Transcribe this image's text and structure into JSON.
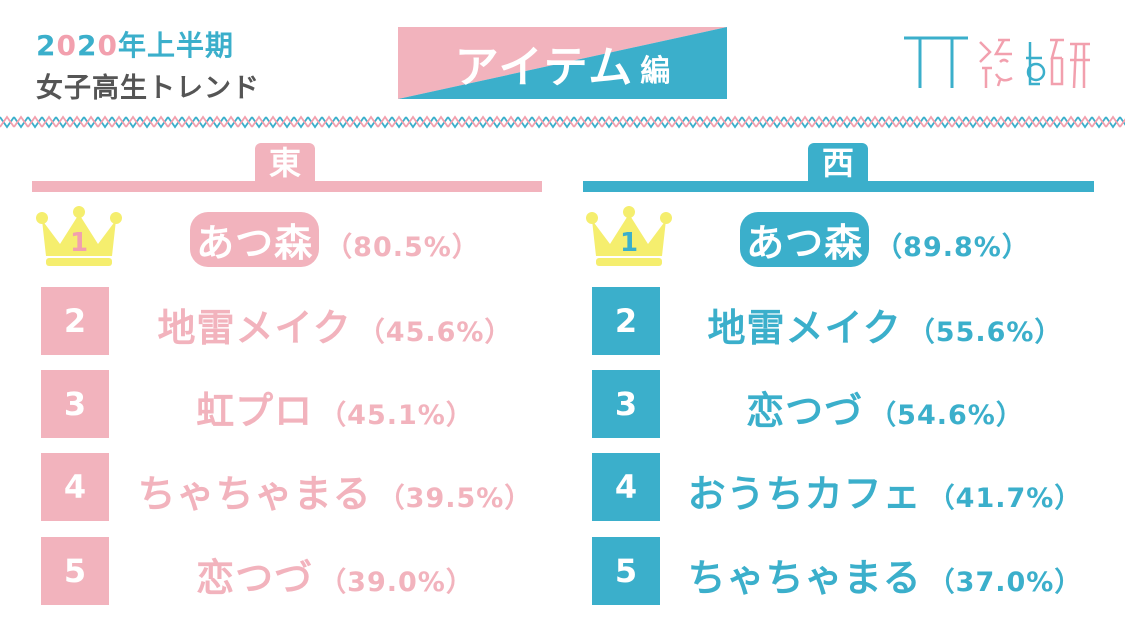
{
  "header": {
    "year_digits": [
      "2",
      "0",
      "2",
      "0"
    ],
    "year_suffix": "年上半期",
    "subtitle": "女子高生トレンド"
  },
  "banner": {
    "main": "アイテム",
    "suffix": "編"
  },
  "logo": {
    "text": "TT総研"
  },
  "colors": {
    "pink": "#F2B3BD",
    "blue": "#3BAFCB",
    "gold": "#F5EE6E",
    "gray": "#555555"
  },
  "east": {
    "heading": "東",
    "ranks": [
      {
        "rank": "1",
        "name": "あつ森",
        "pct": "（80.5%）"
      },
      {
        "rank": "2",
        "name": "地雷メイク",
        "pct": "（45.6%）"
      },
      {
        "rank": "3",
        "name": "虹プロ",
        "pct": "（45.1%）"
      },
      {
        "rank": "4",
        "name": "ちゃちゃまる",
        "pct": "（39.5%）"
      },
      {
        "rank": "5",
        "name": "恋つづ",
        "pct": "（39.0%）"
      }
    ]
  },
  "west": {
    "heading": "西",
    "ranks": [
      {
        "rank": "1",
        "name": "あつ森",
        "pct": "（89.8%）"
      },
      {
        "rank": "2",
        "name": "地雷メイク",
        "pct": "（55.6%）"
      },
      {
        "rank": "3",
        "name": "恋つづ",
        "pct": "（54.6%）"
      },
      {
        "rank": "4",
        "name": "おうちカフェ",
        "pct": "（41.7%）"
      },
      {
        "rank": "5",
        "name": "ちゃちゃまる",
        "pct": "（37.0%）"
      }
    ]
  }
}
